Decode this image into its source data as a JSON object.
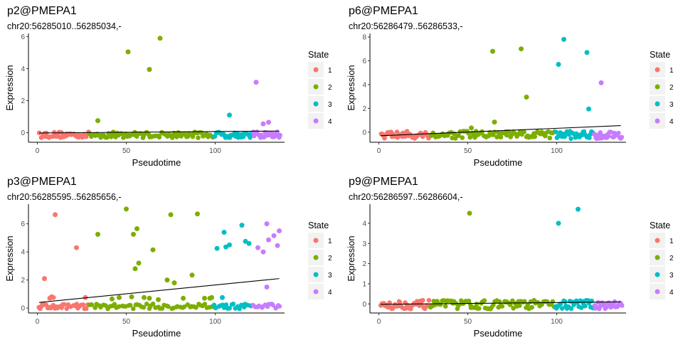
{
  "state_colors": {
    "1": "#F8766D",
    "2": "#7CAE00",
    "3": "#00BFC4",
    "4": "#C77CFF"
  },
  "legend_title": "State",
  "legend_labels": [
    "1",
    "2",
    "3",
    "4"
  ],
  "chart_data": [
    {
      "type": "scatter",
      "title": "p2@PMEPA1",
      "subtitle": "chr20:56285010..56285034,-",
      "xlabel": "Pseudotime",
      "ylabel": "Expression",
      "xlim": [
        -5,
        139
      ],
      "ylim": [
        -0.6,
        6.2
      ],
      "xticks": [
        0,
        50,
        100
      ],
      "yticks": [
        0,
        2,
        4,
        6
      ],
      "trend": {
        "x": [
          1,
          136
        ],
        "y": [
          -0.02,
          0.1
        ]
      },
      "band": {
        "lo": -0.32,
        "hi": 0.05
      },
      "highlights": [
        {
          "x": 34,
          "y": 0.75,
          "state": 2
        },
        {
          "x": 51,
          "y": 5.05,
          "state": 2
        },
        {
          "x": 63,
          "y": 3.95,
          "state": 2
        },
        {
          "x": 69,
          "y": 5.9,
          "state": 2
        },
        {
          "x": 108,
          "y": 1.1,
          "state": 3
        },
        {
          "x": 123,
          "y": 3.15,
          "state": 4
        },
        {
          "x": 127,
          "y": 0.55,
          "state": 4
        },
        {
          "x": 130,
          "y": 0.65,
          "state": 4
        }
      ],
      "ranges": [
        {
          "state": 1,
          "from": 1,
          "to": 29,
          "n": 42
        },
        {
          "state": 2,
          "from": 29,
          "to": 99,
          "n": 80
        },
        {
          "state": 3,
          "from": 99,
          "to": 121,
          "n": 30
        },
        {
          "state": 4,
          "from": 121,
          "to": 137,
          "n": 24
        }
      ]
    },
    {
      "type": "scatter",
      "title": "p6@PMEPA1",
      "subtitle": "chr20:56286479..56286533,-",
      "xlabel": "Pseudotime",
      "ylabel": "Expression",
      "xlim": [
        -5,
        139
      ],
      "ylim": [
        -0.85,
        8.3
      ],
      "xticks": [
        0,
        50,
        100
      ],
      "yticks": [
        0,
        2,
        4,
        6,
        8
      ],
      "trend": {
        "x": [
          1,
          136
        ],
        "y": [
          -0.3,
          0.55
        ]
      },
      "band": {
        "lo": -0.55,
        "hi": 0.1
      },
      "highlights": [
        {
          "x": 52,
          "y": 0.35,
          "state": 2
        },
        {
          "x": 64,
          "y": 6.8,
          "state": 2
        },
        {
          "x": 65,
          "y": 0.85,
          "state": 2
        },
        {
          "x": 80,
          "y": 7.0,
          "state": 2
        },
        {
          "x": 83,
          "y": 2.95,
          "state": 2
        },
        {
          "x": 101,
          "y": 5.7,
          "state": 3
        },
        {
          "x": 104,
          "y": 7.8,
          "state": 3
        },
        {
          "x": 117,
          "y": 6.7,
          "state": 3
        },
        {
          "x": 118,
          "y": 1.95,
          "state": 3
        },
        {
          "x": 125,
          "y": 4.15,
          "state": 4
        }
      ],
      "ranges": [
        {
          "state": 1,
          "from": 1,
          "to": 29,
          "n": 42
        },
        {
          "state": 2,
          "from": 29,
          "to": 99,
          "n": 80
        },
        {
          "state": 3,
          "from": 99,
          "to": 121,
          "n": 30
        },
        {
          "state": 4,
          "from": 121,
          "to": 137,
          "n": 24
        }
      ]
    },
    {
      "type": "scatter",
      "title": "p3@PMEPA1",
      "subtitle": "chr20:56285595..56285656,-",
      "xlabel": "Pseudotime",
      "ylabel": "Expression",
      "xlim": [
        -5,
        139
      ],
      "ylim": [
        -0.35,
        7.4
      ],
      "xticks": [
        0,
        50,
        100
      ],
      "yticks": [
        0,
        2,
        4,
        6
      ],
      "trend": {
        "x": [
          1,
          136
        ],
        "y": [
          0.4,
          2.1
        ]
      },
      "band": {
        "lo": -0.05,
        "hi": 0.3
      },
      "highlights": [
        {
          "x": 1,
          "y": 0.05,
          "state": 1
        },
        {
          "x": 3,
          "y": 0.3,
          "state": 1
        },
        {
          "x": 4,
          "y": 2.1,
          "state": 1
        },
        {
          "x": 7,
          "y": 0.7,
          "state": 1
        },
        {
          "x": 8,
          "y": 0.8,
          "state": 1
        },
        {
          "x": 9,
          "y": 0.75,
          "state": 1
        },
        {
          "x": 10,
          "y": 6.65,
          "state": 1
        },
        {
          "x": 22,
          "y": 4.3,
          "state": 1
        },
        {
          "x": 27,
          "y": 0.75,
          "state": 1
        },
        {
          "x": 34,
          "y": 5.25,
          "state": 2
        },
        {
          "x": 42,
          "y": 0.65,
          "state": 2
        },
        {
          "x": 46,
          "y": 0.75,
          "state": 2
        },
        {
          "x": 50,
          "y": 7.05,
          "state": 2
        },
        {
          "x": 53,
          "y": 0.8,
          "state": 2
        },
        {
          "x": 54,
          "y": 5.25,
          "state": 2
        },
        {
          "x": 55,
          "y": 2.8,
          "state": 2
        },
        {
          "x": 56,
          "y": 5.65,
          "state": 2
        },
        {
          "x": 57,
          "y": 3.2,
          "state": 2
        },
        {
          "x": 60,
          "y": 0.75,
          "state": 2
        },
        {
          "x": 63,
          "y": 0.7,
          "state": 2
        },
        {
          "x": 65,
          "y": 4.15,
          "state": 2
        },
        {
          "x": 68,
          "y": 0.6,
          "state": 2
        },
        {
          "x": 73,
          "y": 2.0,
          "state": 2
        },
        {
          "x": 75,
          "y": 6.65,
          "state": 2
        },
        {
          "x": 77,
          "y": 1.8,
          "state": 2
        },
        {
          "x": 82,
          "y": 0.7,
          "state": 2
        },
        {
          "x": 87,
          "y": 2.35,
          "state": 2
        },
        {
          "x": 90,
          "y": 6.7,
          "state": 2
        },
        {
          "x": 94,
          "y": 0.7,
          "state": 2
        },
        {
          "x": 97,
          "y": 0.7,
          "state": 2
        },
        {
          "x": 98,
          "y": 0.75,
          "state": 2
        },
        {
          "x": 101,
          "y": 4.25,
          "state": 3
        },
        {
          "x": 104,
          "y": 0.75,
          "state": 3
        },
        {
          "x": 105,
          "y": 5.4,
          "state": 3
        },
        {
          "x": 106,
          "y": 4.35,
          "state": 3
        },
        {
          "x": 108,
          "y": 4.5,
          "state": 3
        },
        {
          "x": 115,
          "y": 5.9,
          "state": 3
        },
        {
          "x": 117,
          "y": 4.75,
          "state": 3
        },
        {
          "x": 119,
          "y": 4.6,
          "state": 3
        },
        {
          "x": 124,
          "y": 4.3,
          "state": 4
        },
        {
          "x": 127,
          "y": 4.0,
          "state": 4
        },
        {
          "x": 129,
          "y": 6.0,
          "state": 4
        },
        {
          "x": 129,
          "y": 1.5,
          "state": 4
        },
        {
          "x": 130,
          "y": 4.85,
          "state": 4
        },
        {
          "x": 133,
          "y": 5.15,
          "state": 4
        },
        {
          "x": 135,
          "y": 4.45,
          "state": 4
        },
        {
          "x": 136,
          "y": 5.5,
          "state": 4
        }
      ],
      "ranges": [
        {
          "state": 1,
          "from": 1,
          "to": 29,
          "n": 30
        },
        {
          "state": 2,
          "from": 29,
          "to": 99,
          "n": 55
        },
        {
          "state": 3,
          "from": 99,
          "to": 121,
          "n": 20
        },
        {
          "state": 4,
          "from": 121,
          "to": 137,
          "n": 14
        }
      ]
    },
    {
      "type": "scatter",
      "title": "p9@PMEPA1",
      "subtitle": "chr20:56286597..56286604,-",
      "xlabel": "Pseudotime",
      "ylabel": "Expression",
      "xlim": [
        -5,
        139
      ],
      "ylim": [
        -0.45,
        4.95
      ],
      "xticks": [
        0,
        50,
        100
      ],
      "yticks": [
        0,
        1,
        2,
        3,
        4
      ],
      "trend": {
        "x": [
          1,
          136
        ],
        "y": [
          -0.02,
          0.1
        ]
      },
      "band": {
        "lo": -0.25,
        "hi": 0.18
      },
      "highlights": [
        {
          "x": 51,
          "y": 4.5,
          "state": 2
        },
        {
          "x": 101,
          "y": 4.0,
          "state": 3
        },
        {
          "x": 112,
          "y": 4.7,
          "state": 3
        }
      ],
      "ranges": [
        {
          "state": 1,
          "from": 1,
          "to": 29,
          "n": 42
        },
        {
          "state": 2,
          "from": 29,
          "to": 99,
          "n": 80
        },
        {
          "state": 3,
          "from": 99,
          "to": 121,
          "n": 30
        },
        {
          "state": 4,
          "from": 121,
          "to": 137,
          "n": 24
        }
      ]
    }
  ]
}
